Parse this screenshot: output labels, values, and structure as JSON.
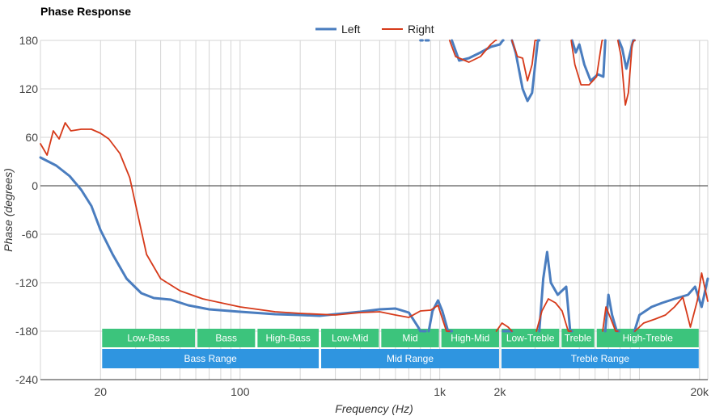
{
  "chart_data": {
    "type": "line",
    "title": "Phase Response",
    "xlabel": "Frequency (Hz)",
    "ylabel": "Phase (degrees)",
    "xscale": "log",
    "xlim": [
      10,
      22000
    ],
    "ylim": [
      -240,
      180
    ],
    "yticks": [
      180,
      120,
      60,
      0,
      -60,
      -120,
      -180,
      -240
    ],
    "xticks": [
      {
        "value": 20,
        "label": "20"
      },
      {
        "value": 100,
        "label": "100"
      },
      {
        "value": 1000,
        "label": "1k"
      },
      {
        "value": 2000,
        "label": "2k"
      },
      {
        "value": 20000,
        "label": "20k"
      }
    ],
    "grid": true,
    "legend_position": "top-center",
    "series": [
      {
        "name": "Left",
        "color": "#4a7dbf",
        "points": [
          [
            10,
            35
          ],
          [
            12,
            25
          ],
          [
            14,
            12
          ],
          [
            16,
            -5
          ],
          [
            18,
            -25
          ],
          [
            20,
            -55
          ],
          [
            23,
            -85
          ],
          [
            27,
            -115
          ],
          [
            32,
            -133
          ],
          [
            37,
            -139
          ],
          [
            45,
            -141
          ],
          [
            55,
            -148
          ],
          [
            70,
            -153
          ],
          [
            100,
            -156
          ],
          [
            150,
            -159
          ],
          [
            200,
            -160
          ],
          [
            250,
            -161
          ],
          [
            300,
            -159
          ],
          [
            400,
            -156
          ],
          [
            500,
            -153
          ],
          [
            600,
            -152
          ],
          [
            700,
            -157
          ],
          [
            780,
            -175
          ],
          [
            800,
            180
          ],
          [
            820,
            -180
          ],
          [
            850,
            180
          ],
          [
            880,
            -180
          ],
          [
            920,
            -155
          ],
          [
            980,
            -142
          ],
          [
            1030,
            -155
          ],
          [
            1100,
            -180
          ],
          [
            1150,
            180
          ],
          [
            1250,
            155
          ],
          [
            1400,
            158
          ],
          [
            1600,
            165
          ],
          [
            1800,
            172
          ],
          [
            2000,
            175
          ],
          [
            2070,
            180
          ],
          [
            2080,
            -180
          ],
          [
            2250,
            -180
          ],
          [
            2300,
            180
          ],
          [
            2400,
            165
          ],
          [
            2600,
            120
          ],
          [
            2750,
            105
          ],
          [
            2900,
            115
          ],
          [
            3100,
            180
          ],
          [
            3150,
            -180
          ],
          [
            3300,
            -115
          ],
          [
            3450,
            -82
          ],
          [
            3600,
            -120
          ],
          [
            3900,
            -135
          ],
          [
            4300,
            -125
          ],
          [
            4500,
            -180
          ],
          [
            4600,
            180
          ],
          [
            4800,
            165
          ],
          [
            5000,
            175
          ],
          [
            5300,
            150
          ],
          [
            5700,
            130
          ],
          [
            6200,
            138
          ],
          [
            6600,
            135
          ],
          [
            6750,
            -180
          ],
          [
            7000,
            -135
          ],
          [
            7300,
            -160
          ],
          [
            7700,
            -180
          ],
          [
            7900,
            180
          ],
          [
            8200,
            170
          ],
          [
            8600,
            145
          ],
          [
            8900,
            160
          ],
          [
            9300,
            180
          ],
          [
            9450,
            -180
          ],
          [
            10000,
            -160
          ],
          [
            11500,
            -150
          ],
          [
            13000,
            -145
          ],
          [
            15000,
            -140
          ],
          [
            17500,
            -135
          ],
          [
            19000,
            -125
          ],
          [
            20500,
            -150
          ],
          [
            22000,
            -115
          ]
        ]
      },
      {
        "name": "Right",
        "color": "#d63a1a",
        "points": [
          [
            10,
            52
          ],
          [
            10.8,
            38
          ],
          [
            11.6,
            68
          ],
          [
            12.4,
            58
          ],
          [
            13.3,
            78
          ],
          [
            14.2,
            68
          ],
          [
            16,
            70
          ],
          [
            18,
            70
          ],
          [
            20,
            65
          ],
          [
            22,
            58
          ],
          [
            25,
            40
          ],
          [
            28,
            10
          ],
          [
            31,
            -40
          ],
          [
            34,
            -85
          ],
          [
            40,
            -115
          ],
          [
            50,
            -130
          ],
          [
            65,
            -140
          ],
          [
            100,
            -150
          ],
          [
            150,
            -156
          ],
          [
            200,
            -158
          ],
          [
            300,
            -160
          ],
          [
            400,
            -157
          ],
          [
            500,
            -156
          ],
          [
            600,
            -160
          ],
          [
            700,
            -163
          ],
          [
            800,
            -155
          ],
          [
            900,
            -154
          ],
          [
            980,
            -148
          ],
          [
            1080,
            -180
          ],
          [
            1120,
            180
          ],
          [
            1200,
            160
          ],
          [
            1400,
            153
          ],
          [
            1600,
            160
          ],
          [
            1800,
            175
          ],
          [
            1900,
            180
          ],
          [
            1920,
            -180
          ],
          [
            2050,
            -170
          ],
          [
            2200,
            -175
          ],
          [
            2300,
            180
          ],
          [
            2450,
            160
          ],
          [
            2600,
            158
          ],
          [
            2750,
            130
          ],
          [
            2900,
            150
          ],
          [
            3000,
            180
          ],
          [
            3050,
            -180
          ],
          [
            3250,
            -155
          ],
          [
            3500,
            -140
          ],
          [
            3800,
            -145
          ],
          [
            4100,
            -155
          ],
          [
            4400,
            -180
          ],
          [
            4550,
            180
          ],
          [
            4750,
            150
          ],
          [
            5100,
            125
          ],
          [
            5600,
            125
          ],
          [
            6100,
            135
          ],
          [
            6500,
            180
          ],
          [
            6550,
            -180
          ],
          [
            6800,
            -150
          ],
          [
            7200,
            -165
          ],
          [
            7600,
            -180
          ],
          [
            7800,
            180
          ],
          [
            8100,
            160
          ],
          [
            8500,
            100
          ],
          [
            8800,
            115
          ],
          [
            9200,
            175
          ],
          [
            9400,
            180
          ],
          [
            9500,
            -180
          ],
          [
            10500,
            -170
          ],
          [
            12000,
            -165
          ],
          [
            13500,
            -160
          ],
          [
            15000,
            -150
          ],
          [
            16500,
            -138
          ],
          [
            18000,
            -175
          ],
          [
            19500,
            -142
          ],
          [
            20500,
            -108
          ],
          [
            22000,
            -143
          ]
        ]
      }
    ],
    "bands": [
      {
        "label": "Low-Bass",
        "from": 20,
        "to": 60,
        "color": "#3cc47c"
      },
      {
        "label": "Bass",
        "from": 60,
        "to": 120,
        "color": "#3cc47c"
      },
      {
        "label": "High-Bass",
        "from": 120,
        "to": 250,
        "color": "#3cc47c"
      },
      {
        "label": "Low-Mid",
        "from": 250,
        "to": 500,
        "color": "#3cc47c"
      },
      {
        "label": "Mid",
        "from": 500,
        "to": 1000,
        "color": "#3cc47c"
      },
      {
        "label": "High-Mid",
        "from": 1000,
        "to": 2000,
        "color": "#3cc47c"
      },
      {
        "label": "Low-Treble",
        "from": 2000,
        "to": 4000,
        "color": "#3cc47c"
      },
      {
        "label": "Treble",
        "from": 4000,
        "to": 6000,
        "color": "#3cc47c"
      },
      {
        "label": "High-Treble",
        "from": 6000,
        "to": 20000,
        "color": "#3cc47c"
      }
    ],
    "ranges": [
      {
        "label": "Bass Range",
        "from": 20,
        "to": 250,
        "color": "#2f95e0"
      },
      {
        "label": "Mid Range",
        "from": 250,
        "to": 2000,
        "color": "#2f95e0"
      },
      {
        "label": "Treble Range",
        "from": 2000,
        "to": 20000,
        "color": "#2f95e0"
      }
    ]
  }
}
